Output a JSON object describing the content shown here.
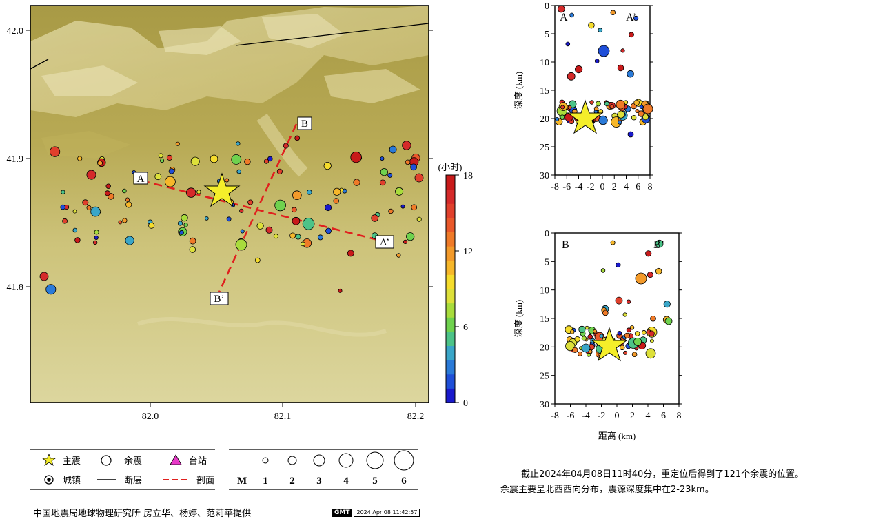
{
  "map": {
    "lat_ticks": [
      "42.0",
      "41.9",
      "41.8"
    ],
    "lon_ticks": [
      "82.0",
      "82.1",
      "82.2"
    ],
    "profile_labels": {
      "a": "A",
      "a_prime": "A’",
      "b": "B",
      "b_prime": "B’"
    }
  },
  "colorbar": {
    "unit": "(小时)",
    "ticks": [
      "18",
      "12",
      "6",
      "0"
    ],
    "range": [
      0,
      18
    ],
    "colors": [
      "#1a1acc",
      "#1f4fd8",
      "#2a7ad8",
      "#3aa6c8",
      "#4cc388",
      "#6fd24e",
      "#a8dc3c",
      "#dde03a",
      "#f5dc2c",
      "#f6b72a",
      "#f39a2a",
      "#ef7a28",
      "#e9582a",
      "#e0402c",
      "#d52a2a",
      "#c81a1a"
    ]
  },
  "profile_ab": {
    "left_label": "A",
    "right_label": "A’",
    "ylabel": "深度 (km)",
    "x_ticks": [
      "-8",
      "-6",
      "-4",
      "-2",
      "0",
      "2",
      "4",
      "6",
      "8"
    ],
    "y_ticks": [
      "0",
      "5",
      "10",
      "15",
      "20",
      "25",
      "30"
    ]
  },
  "profile_bb": {
    "left_label": "B",
    "right_label": "B’",
    "ylabel": "深度 (km)",
    "xlabel": "距离 (km)",
    "x_ticks": [
      "-8",
      "-6",
      "-4",
      "-2",
      "0",
      "2",
      "4",
      "6",
      "8"
    ],
    "y_ticks": [
      "0",
      "5",
      "10",
      "15",
      "20",
      "25",
      "30"
    ]
  },
  "legend": {
    "mainshock": "主震",
    "aftershock": "余震",
    "station": "台站",
    "town": "城镇",
    "fault": "断层",
    "profile": "剖面",
    "magnitude_label": "M",
    "magnitudes": [
      "1",
      "2",
      "3",
      "4",
      "5",
      "6"
    ]
  },
  "summary": {
    "line1": "截止2024年04月08日11时40分，重定位后得到了121个余震的位置。",
    "line2": "余震主要呈北西西向分布，震源深度集中在2-23km。"
  },
  "credit": "中国地震局地球物理研究所 房立华、杨婷、范莉苹提供",
  "gmt": {
    "logo": "GMT",
    "timestamp": "2024 Apr 08 11:42:57"
  }
}
